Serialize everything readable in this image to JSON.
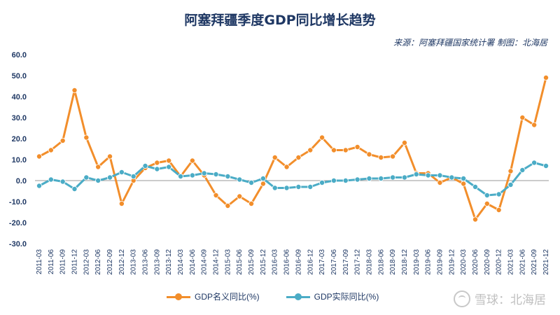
{
  "title": "阿塞拜疆季度GDP同比增长趋势",
  "subtitle": "来源：阿塞拜疆国家统计署 制图：北海居",
  "watermark": "雪球：北海居",
  "colors": {
    "nominal": "#f28e2b",
    "real": "#4bacc6",
    "text": "#1f3864",
    "axis": "#999999"
  },
  "chart_data": {
    "type": "line",
    "title": "阿塞拜疆季度GDP同比增长趋势",
    "xlabel": "",
    "ylabel": "",
    "ylim": [
      -30,
      60
    ],
    "yticks": [
      "60.0",
      "50.0",
      "40.0",
      "30.0",
      "20.0",
      "10.0",
      "0.0",
      "-10.0",
      "-20.0",
      "-30.0"
    ],
    "categories": [
      "2011-03",
      "2011-06",
      "2011-09",
      "2011-12",
      "2012-03",
      "2012-06",
      "2012-09",
      "2012-12",
      "2013-03",
      "2013-06",
      "2013-09",
      "2013-12",
      "2014-03",
      "2014-06",
      "2014-09",
      "2014-12",
      "2015-03",
      "2015-06",
      "2015-09",
      "2015-12",
      "2016-03",
      "2016-06",
      "2016-09",
      "2016-12",
      "2017-03",
      "2017-06",
      "2017-09",
      "2017-12",
      "2018-03",
      "2018-06",
      "2018-09",
      "2018-12",
      "2019-03",
      "2019-06",
      "2019-09",
      "2019-12",
      "2020-03",
      "2020-06",
      "2020-09",
      "2020-12",
      "2021-03",
      "2021-06",
      "2021-09",
      "2021-12"
    ],
    "grid": false,
    "legend_position": "bottom",
    "series": [
      {
        "name": "GDP名义同比(%)",
        "color": "#f28e2b",
        "values": [
          11.5,
          14.5,
          19.0,
          43.0,
          20.5,
          6.5,
          11.5,
          -11.0,
          0.0,
          6.0,
          8.5,
          9.5,
          2.0,
          9.5,
          2.5,
          -7.0,
          -12.0,
          -7.5,
          -11.0,
          -1.5,
          11.0,
          6.5,
          11.0,
          14.5,
          20.5,
          14.5,
          14.5,
          16.0,
          12.5,
          11.0,
          11.5,
          18.0,
          3.5,
          3.5,
          -1.0,
          1.5,
          -1.5,
          -18.5,
          -11.0,
          -14.0,
          4.5,
          30.0,
          26.5,
          49.0
        ]
      },
      {
        "name": "GDP实际同比(%)",
        "color": "#4bacc6",
        "values": [
          -2.5,
          0.5,
          -0.5,
          -4.0,
          1.5,
          0.0,
          1.5,
          4.0,
          2.0,
          7.0,
          5.5,
          6.5,
          2.0,
          2.5,
          3.5,
          3.0,
          2.0,
          0.5,
          -1.0,
          1.0,
          -3.5,
          -3.5,
          -3.0,
          -3.0,
          -1.0,
          0.0,
          0.0,
          0.5,
          1.0,
          1.0,
          1.5,
          1.5,
          3.0,
          2.5,
          2.5,
          1.5,
          1.0,
          -3.0,
          -7.0,
          -6.5,
          -2.0,
          5.0,
          8.5,
          7.0
        ]
      }
    ]
  }
}
